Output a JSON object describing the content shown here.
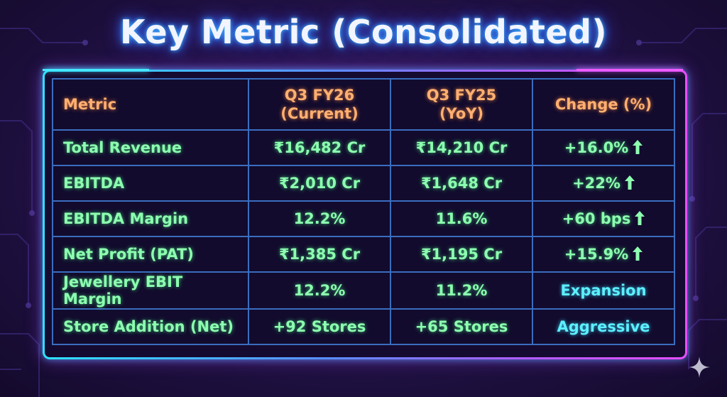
{
  "title": "Key Metric (Consolidated)",
  "colors": {
    "header_text": "#ffb070",
    "value_text": "#8dffb0",
    "qualitative_text": "#5cf0ff",
    "border_left": "#2de3ff",
    "border_right": "#e94dff"
  },
  "table": {
    "headers": [
      {
        "line1": "Metric",
        "line2": ""
      },
      {
        "line1": "Q3 FY26",
        "line2": "(Current)"
      },
      {
        "line1": "Q3 FY25",
        "line2": "(YoY)"
      },
      {
        "line1": "Change (%)",
        "line2": ""
      }
    ],
    "rows": [
      {
        "metric": "Total Revenue",
        "current": "₹16,482 Cr",
        "yoy": "₹14,210 Cr",
        "change": "+16.0%",
        "arrow": "arrow-up-icon"
      },
      {
        "metric": "EBITDA",
        "current": "₹2,010 Cr",
        "yoy": "₹1,648 Cr",
        "change": "+22%",
        "arrow": "arrow-up-icon"
      },
      {
        "metric": "EBITDA Margin",
        "current": "12.2%",
        "yoy": "11.6%",
        "change": "+60 bps",
        "arrow": "arrow-up-icon"
      },
      {
        "metric": "Net Profit (PAT)",
        "current": "₹1,385 Cr",
        "yoy": "₹1,195 Cr",
        "change": "+15.9%",
        "arrow": "arrow-up-icon"
      },
      {
        "metric": "Jewellery EBIT Margin",
        "current": "12.2%",
        "yoy": "11.2%",
        "change": "Expansion",
        "arrow": ""
      },
      {
        "metric": "Store Addition (Net)",
        "current": "+92 Stores",
        "yoy": "+65 Stores",
        "change": "Aggressive",
        "arrow": ""
      }
    ]
  },
  "watermark_icon": "sparkle-icon"
}
